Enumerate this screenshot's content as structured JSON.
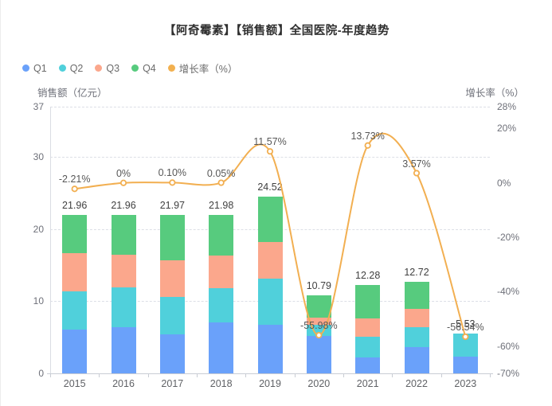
{
  "title": "【阿奇霉素】【销售额】全国医院-年度趋势",
  "legend": {
    "items": [
      {
        "label": "Q1",
        "color": "#6aa1fa"
      },
      {
        "label": "Q2",
        "color": "#50d0db"
      },
      {
        "label": "Q3",
        "color": "#fba78c"
      },
      {
        "label": "Q4",
        "color": "#57cb7e"
      },
      {
        "label": "增长率（%）",
        "color": "#f2b04f"
      }
    ]
  },
  "left_axis": {
    "name": "销售额（亿元）",
    "min": 0,
    "max": 37,
    "ticks": [
      37,
      30,
      20,
      10,
      0
    ],
    "tick_labels": [
      "37",
      "30",
      "20",
      "10",
      "0"
    ]
  },
  "right_axis": {
    "name": "增长率（%）",
    "min": -70,
    "max": 28,
    "ticks": [
      28,
      20,
      0,
      -20,
      -40,
      -60,
      -70
    ],
    "tick_labels": [
      "28%",
      "20%",
      "0%",
      "-20%",
      "-40%",
      "-60%",
      "-70%"
    ]
  },
  "chart_data": {
    "type": "bar",
    "subtype": "stacked-bar-with-line",
    "title": "【阿奇霉素】【销售额】全国医院-年度趋势",
    "categories": [
      "2015",
      "2016",
      "2017",
      "2018",
      "2019",
      "2020",
      "2021",
      "2022",
      "2023"
    ],
    "series": [
      {
        "name": "Q1",
        "type": "bar",
        "stack": true,
        "color": "#6aa1fa",
        "values": [
          6.04,
          6.41,
          5.41,
          7.07,
          6.77,
          5.22,
          2.18,
          3.65,
          2.28
        ]
      },
      {
        "name": "Q2",
        "type": "bar",
        "stack": true,
        "color": "#50d0db",
        "values": [
          5.36,
          5.56,
          5.23,
          4.73,
          6.38,
          1.48,
          2.92,
          2.8,
          3.25
        ]
      },
      {
        "name": "Q3",
        "type": "bar",
        "stack": true,
        "color": "#fba78c",
        "values": [
          5.25,
          4.49,
          5.02,
          4.6,
          5.05,
          0.99,
          2.5,
          2.55,
          0
        ]
      },
      {
        "name": "Q4",
        "type": "bar",
        "stack": true,
        "color": "#57cb7e",
        "values": [
          5.31,
          5.5,
          6.31,
          5.58,
          6.32,
          3.1,
          4.68,
          3.72,
          0
        ]
      },
      {
        "name": "增长率（%）",
        "type": "line",
        "axis": "right",
        "color": "#f2af51",
        "values": [
          -2.21,
          0,
          0.1,
          0.05,
          11.57,
          -55.98,
          13.73,
          3.57,
          -56.54
        ],
        "labels": [
          "-2.21%",
          "0%",
          "0.10%",
          "0.05%",
          "11.57%",
          "-55.98%",
          "13.73%",
          "3.57%",
          "-56.54%"
        ]
      }
    ],
    "totals": {
      "values": [
        21.96,
        21.96,
        21.97,
        21.98,
        24.52,
        10.79,
        12.28,
        12.72,
        5.53
      ],
      "labels": [
        "21.96",
        "21.96",
        "21.97",
        "21.98",
        "24.52",
        "10.79",
        "12.28",
        "12.72",
        "5.53"
      ]
    },
    "xlabel": "",
    "ylabel": "销售额（亿元）",
    "y2label": "增长率（%）",
    "ylim": [
      0,
      37
    ],
    "y2lim": [
      -70,
      28
    ],
    "grid": "horizontal dashed at left-axis ticks",
    "legend_position": "top-left"
  }
}
